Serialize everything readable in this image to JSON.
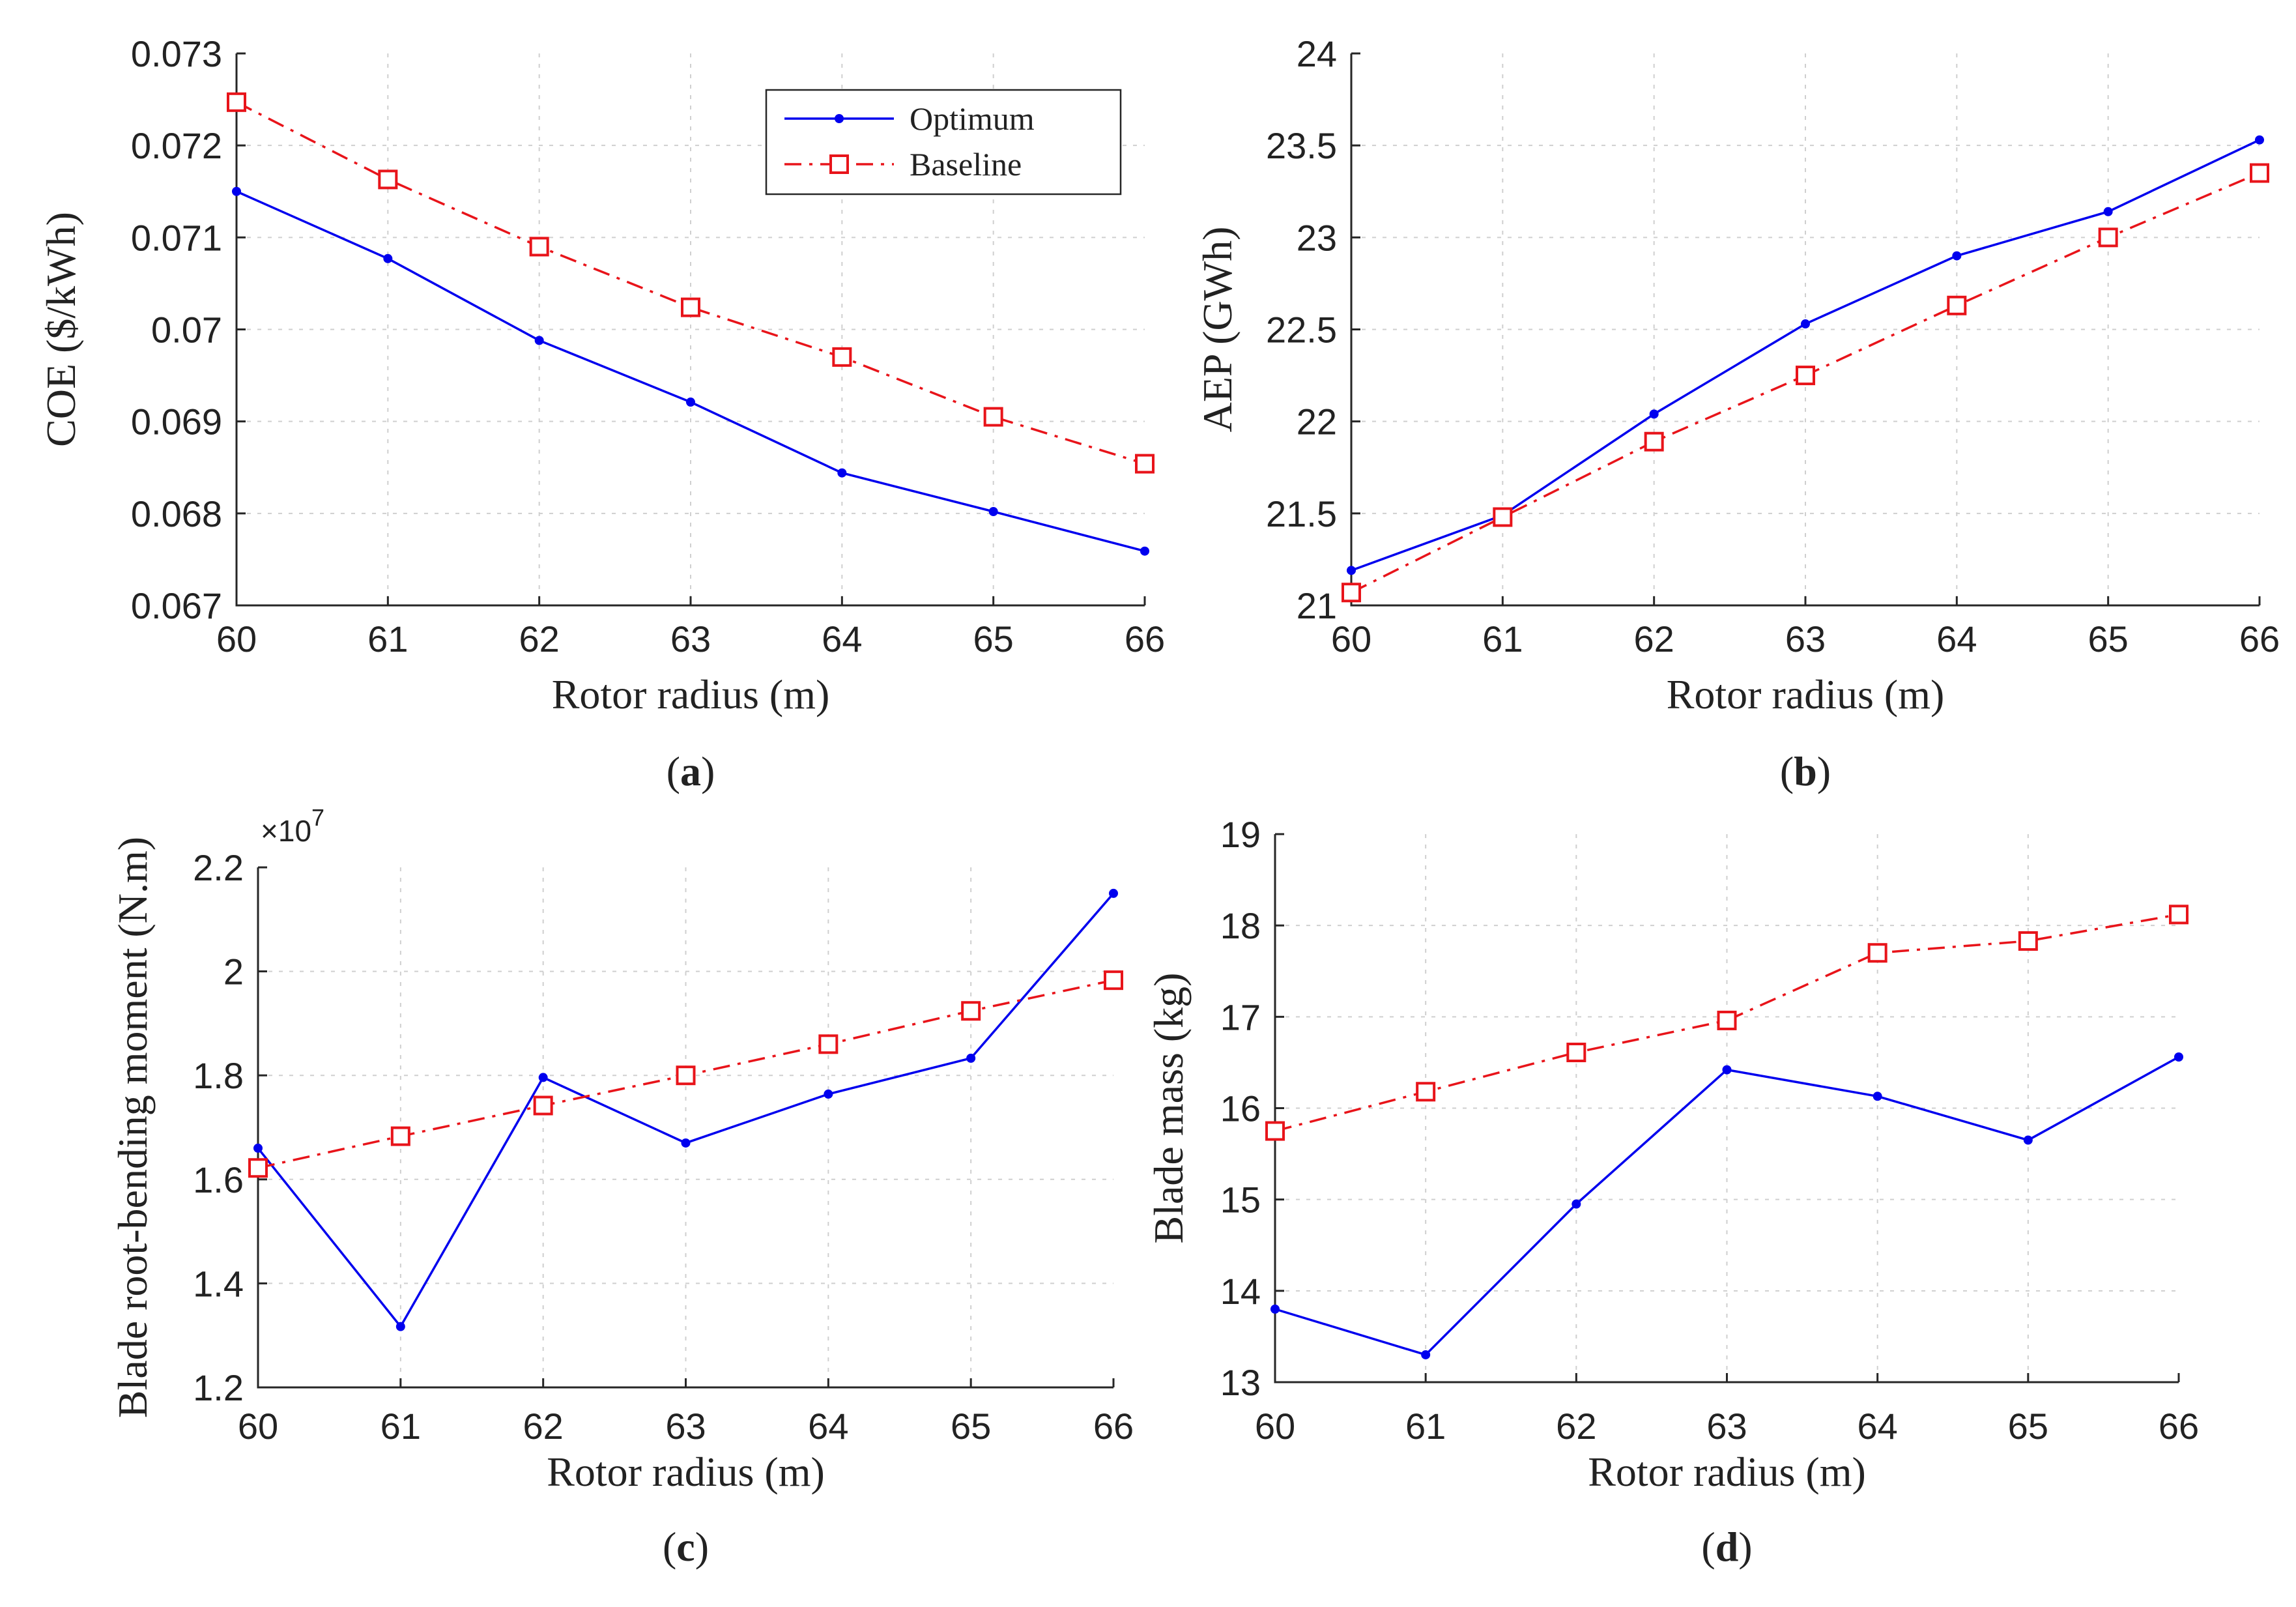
{
  "colors": {
    "optimum": "#0000ee",
    "baseline": "#e8141a",
    "axis": "#262626",
    "grid": "#cfcfcf"
  },
  "legend": {
    "optimum": "Optimum",
    "baseline": "Baseline"
  },
  "chart_data": [
    {
      "id": "a",
      "type": "line",
      "caption_letter": "a",
      "xlabel": "Rotor radius (m)",
      "ylabel": "COE ($/kWh)",
      "x": [
        60,
        61,
        62,
        63,
        64,
        65,
        66
      ],
      "xlim": [
        60,
        66
      ],
      "ylim": [
        0.067,
        0.073
      ],
      "xticks": [
        60,
        61,
        62,
        63,
        64,
        65,
        66
      ],
      "yticks": [
        0.067,
        0.068,
        0.069,
        0.07,
        0.071,
        0.072,
        0.073
      ],
      "ytick_labels": [
        "0.067",
        "0.068",
        "0.069",
        "0.07",
        "0.071",
        "0.072",
        "0.073"
      ],
      "grid": true,
      "legend_position": "top-right",
      "series": [
        {
          "name": "Optimum",
          "style": "solid-dot",
          "values": [
            0.0715,
            0.07077,
            0.06988,
            0.06921,
            0.06844,
            0.06802,
            0.06759
          ]
        },
        {
          "name": "Baseline",
          "style": "dashdot-square",
          "values": [
            0.07247,
            0.07163,
            0.0709,
            0.07024,
            0.0697,
            0.06905,
            0.06854
          ]
        }
      ]
    },
    {
      "id": "b",
      "type": "line",
      "caption_letter": "b",
      "xlabel": "Rotor radius (m)",
      "ylabel": "AEP (GWh)",
      "x": [
        60,
        61,
        62,
        63,
        64,
        65,
        66
      ],
      "xlim": [
        60,
        66
      ],
      "ylim": [
        21,
        24
      ],
      "xticks": [
        60,
        61,
        62,
        63,
        64,
        65,
        66
      ],
      "yticks": [
        21,
        21.5,
        22,
        22.5,
        23,
        23.5,
        24
      ],
      "ytick_labels": [
        "21",
        "21.5",
        "22",
        "22.5",
        "23",
        "23.5",
        "24"
      ],
      "grid": true,
      "series": [
        {
          "name": "Optimum",
          "style": "solid-dot",
          "values": [
            21.19,
            21.49,
            22.04,
            22.53,
            22.9,
            23.14,
            23.53
          ]
        },
        {
          "name": "Baseline",
          "style": "dashdot-square",
          "values": [
            21.07,
            21.48,
            21.89,
            22.25,
            22.63,
            23.0,
            23.35
          ]
        }
      ]
    },
    {
      "id": "c",
      "type": "line",
      "caption_letter": "c",
      "xlabel": "Rotor radius (m)",
      "ylabel": "Blade root-bending moment (N.m)",
      "y_multiplier": "×10",
      "y_multiplier_exp": "7",
      "x": [
        60,
        61,
        62,
        63,
        64,
        65,
        66
      ],
      "xlim": [
        60,
        66
      ],
      "ylim": [
        1.2,
        2.2
      ],
      "xticks": [
        60,
        61,
        62,
        63,
        64,
        65,
        66
      ],
      "yticks": [
        1.2,
        1.4,
        1.6,
        1.8,
        2.0,
        2.2
      ],
      "ytick_labels": [
        "1.2",
        "1.4",
        "1.6",
        "1.8",
        "2",
        "2.2"
      ],
      "grid": true,
      "series": [
        {
          "name": "Optimum",
          "style": "solid-dot",
          "values": [
            1.66,
            1.317,
            1.796,
            1.67,
            1.764,
            1.833,
            2.15
          ]
        },
        {
          "name": "Baseline",
          "style": "dashdot-square",
          "values": [
            1.622,
            1.683,
            1.742,
            1.8,
            1.86,
            1.924,
            1.983
          ]
        }
      ]
    },
    {
      "id": "d",
      "type": "line",
      "caption_letter": "d",
      "xlabel": "Rotor radius (m)",
      "ylabel": "Blade mass (kg)",
      "x": [
        60,
        61,
        62,
        63,
        64,
        65,
        66
      ],
      "xlim": [
        60,
        66
      ],
      "ylim": [
        13,
        19
      ],
      "xticks": [
        60,
        61,
        62,
        63,
        64,
        65,
        66
      ],
      "yticks": [
        13,
        14,
        15,
        16,
        17,
        18,
        19
      ],
      "ytick_labels": [
        "13",
        "14",
        "15",
        "16",
        "17",
        "18",
        "19"
      ],
      "grid": true,
      "series": [
        {
          "name": "Optimum",
          "style": "solid-dot",
          "values": [
            13.8,
            13.3,
            14.95,
            16.42,
            16.13,
            15.65,
            16.56
          ]
        },
        {
          "name": "Baseline",
          "style": "dashdot-square",
          "values": [
            15.75,
            16.18,
            16.61,
            16.96,
            17.7,
            17.83,
            18.12
          ]
        }
      ]
    }
  ]
}
